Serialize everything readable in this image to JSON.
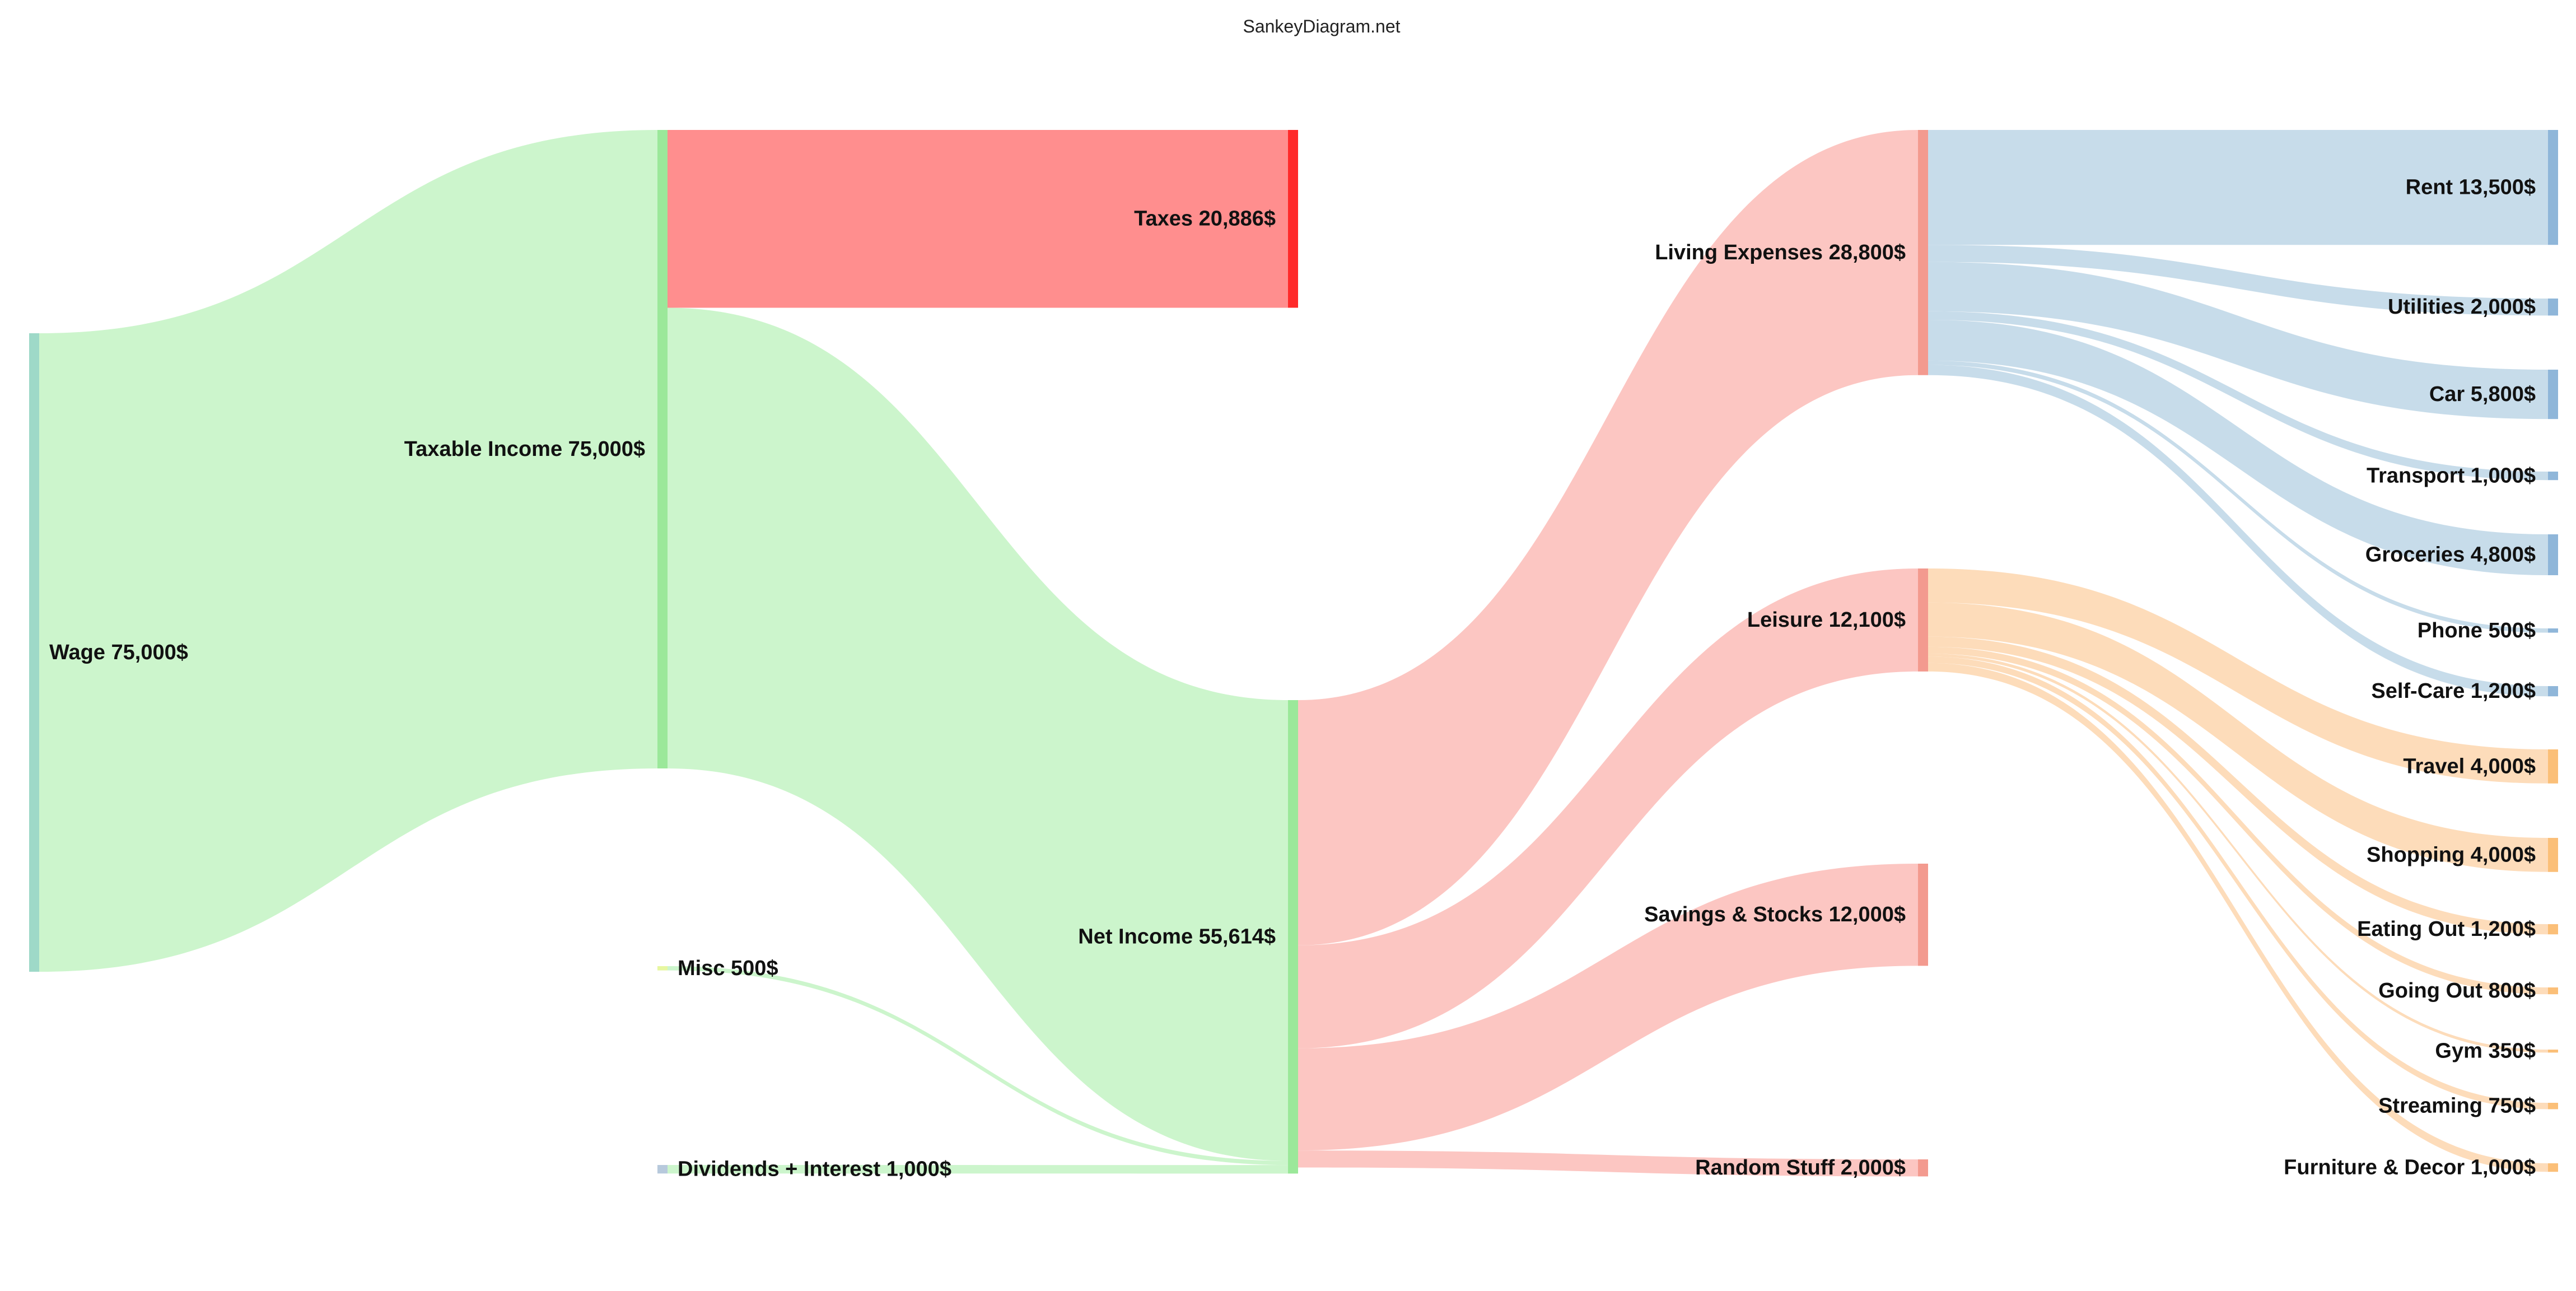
{
  "watermark": "SankeyDiagram.net",
  "colors": {
    "wage_node": "#9ed9c8",
    "income_node": "#9be89a",
    "income_flow": "#ccf5cc",
    "taxes_node": "#ff2a2a",
    "taxes_flow": "#ff8e8e",
    "misc_node": "#e7f7a0",
    "misc_flow": "#ccf5cc",
    "dividends_node": "#b7c9dc",
    "spend_node": "#f39a8f",
    "spend_flow": "#fcc6c2",
    "living_out_flow": "#c7dcea",
    "living_leaf_node": "#8fb6d9",
    "leisure_out_flow": "#fddcba",
    "leisure_leaf_node": "#fbbf78"
  },
  "nodes": [
    {
      "id": "wage",
      "label": "Wage 75,000$",
      "color_key": "wage_node"
    },
    {
      "id": "taxable",
      "label": "Taxable Income 75,000$",
      "color_key": "income_node"
    },
    {
      "id": "misc",
      "label": "Misc 500$",
      "color_key": "misc_node"
    },
    {
      "id": "dividends",
      "label": "Dividends + Interest 1,000$",
      "color_key": "dividends_node"
    },
    {
      "id": "taxes",
      "label": "Taxes 20,886$",
      "color_key": "taxes_node"
    },
    {
      "id": "net",
      "label": "Net Income 55,614$",
      "color_key": "income_node"
    },
    {
      "id": "living",
      "label": "Living Expenses 28,800$",
      "color_key": "spend_node"
    },
    {
      "id": "leisure",
      "label": "Leisure 12,100$",
      "color_key": "spend_node"
    },
    {
      "id": "savings",
      "label": "Savings & Stocks 12,000$",
      "color_key": "spend_node"
    },
    {
      "id": "random",
      "label": "Random Stuff 2,000$",
      "color_key": "spend_node"
    },
    {
      "id": "rent",
      "label": "Rent 13,500$",
      "color_key": "living_leaf_node"
    },
    {
      "id": "utilities",
      "label": "Utilities 2,000$",
      "color_key": "living_leaf_node"
    },
    {
      "id": "car",
      "label": "Car 5,800$",
      "color_key": "living_leaf_node"
    },
    {
      "id": "transport",
      "label": "Transport 1,000$",
      "color_key": "living_leaf_node"
    },
    {
      "id": "groceries",
      "label": "Groceries 4,800$",
      "color_key": "living_leaf_node"
    },
    {
      "id": "phone",
      "label": "Phone 500$",
      "color_key": "living_leaf_node"
    },
    {
      "id": "selfcare",
      "label": "Self-Care 1,200$",
      "color_key": "living_leaf_node"
    },
    {
      "id": "travel",
      "label": "Travel 4,000$",
      "color_key": "leisure_leaf_node"
    },
    {
      "id": "shopping",
      "label": "Shopping 4,000$",
      "color_key": "leisure_leaf_node"
    },
    {
      "id": "eatingout",
      "label": "Eating Out 1,200$",
      "color_key": "leisure_leaf_node"
    },
    {
      "id": "goingout",
      "label": "Going Out 800$",
      "color_key": "leisure_leaf_node"
    },
    {
      "id": "gym",
      "label": "Gym 350$",
      "color_key": "leisure_leaf_node"
    },
    {
      "id": "streaming",
      "label": "Streaming 750$",
      "color_key": "leisure_leaf_node"
    },
    {
      "id": "furniture",
      "label": "Furniture & Decor 1,000$",
      "color_key": "leisure_leaf_node"
    }
  ],
  "links": [
    {
      "source": "wage",
      "target": "taxable",
      "value": 75000,
      "color_key": "income_flow"
    },
    {
      "source": "taxable",
      "target": "taxes",
      "value": 20886,
      "color_key": "taxes_flow"
    },
    {
      "source": "taxable",
      "target": "net",
      "value": 54114,
      "color_key": "income_flow"
    },
    {
      "source": "misc",
      "target": "net",
      "value": 500,
      "color_key": "misc_flow"
    },
    {
      "source": "dividends",
      "target": "net",
      "value": 1000,
      "color_key": "income_flow"
    },
    {
      "source": "net",
      "target": "living",
      "value": 28800,
      "color_key": "spend_flow"
    },
    {
      "source": "net",
      "target": "leisure",
      "value": 12100,
      "color_key": "spend_flow"
    },
    {
      "source": "net",
      "target": "savings",
      "value": 12000,
      "color_key": "spend_flow"
    },
    {
      "source": "net",
      "target": "random",
      "value": 2000,
      "color_key": "spend_flow"
    },
    {
      "source": "living",
      "target": "rent",
      "value": 13500,
      "color_key": "living_out_flow"
    },
    {
      "source": "living",
      "target": "utilities",
      "value": 2000,
      "color_key": "living_out_flow"
    },
    {
      "source": "living",
      "target": "car",
      "value": 5800,
      "color_key": "living_out_flow"
    },
    {
      "source": "living",
      "target": "transport",
      "value": 1000,
      "color_key": "living_out_flow"
    },
    {
      "source": "living",
      "target": "groceries",
      "value": 4800,
      "color_key": "living_out_flow"
    },
    {
      "source": "living",
      "target": "phone",
      "value": 500,
      "color_key": "living_out_flow"
    },
    {
      "source": "living",
      "target": "selfcare",
      "value": 1200,
      "color_key": "living_out_flow"
    },
    {
      "source": "leisure",
      "target": "travel",
      "value": 4000,
      "color_key": "leisure_out_flow"
    },
    {
      "source": "leisure",
      "target": "shopping",
      "value": 4000,
      "color_key": "leisure_out_flow"
    },
    {
      "source": "leisure",
      "target": "eatingout",
      "value": 1200,
      "color_key": "leisure_out_flow"
    },
    {
      "source": "leisure",
      "target": "goingout",
      "value": 800,
      "color_key": "leisure_out_flow"
    },
    {
      "source": "leisure",
      "target": "gym",
      "value": 350,
      "color_key": "leisure_out_flow"
    },
    {
      "source": "leisure",
      "target": "streaming",
      "value": 750,
      "color_key": "leisure_out_flow"
    },
    {
      "source": "leisure",
      "target": "furniture",
      "value": 1000,
      "color_key": "leisure_out_flow"
    }
  ]
}
